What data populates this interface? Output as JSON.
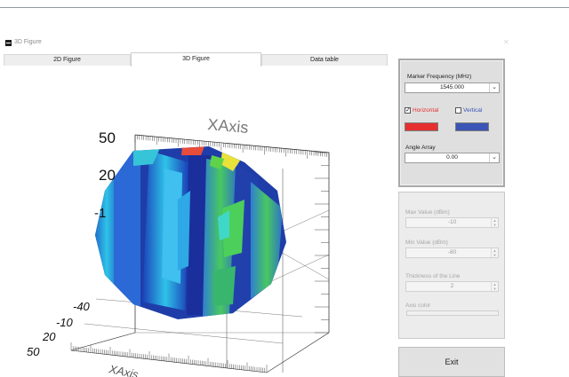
{
  "window": {
    "title": "3D Figure"
  },
  "tabs": [
    {
      "label": "2D Figure",
      "active": false
    },
    {
      "label": "3D Figure",
      "active": true
    },
    {
      "label": "Data table",
      "active": false
    }
  ],
  "plot": {
    "top_axis_label": "XAxis",
    "bottom_axis_label": "XAxis",
    "vertical_ticks": [
      "50",
      "20",
      "-1"
    ],
    "depth_ticks": [
      "-40",
      "-10",
      "20",
      "50"
    ]
  },
  "controls": {
    "marker_frequency": {
      "label": "Marker Frequency (MHz)",
      "value": "1545.000"
    },
    "horizontal": {
      "label": "Horizontal",
      "checked": true,
      "color": "#e6302f"
    },
    "vertical": {
      "label": "Vertical",
      "checked": false,
      "color": "#3a55b5"
    },
    "angle_array": {
      "label": "Angle Array",
      "value": "0.00"
    },
    "max_value": {
      "label": "Max Value (dBm)",
      "value": "-10"
    },
    "min_value": {
      "label": "Min Value (dBm)",
      "value": "-80"
    },
    "line_thickness": {
      "label": "Thickness of the Line",
      "value": "2"
    },
    "axis_color": {
      "label": "Axis color"
    },
    "exit_label": "Exit"
  },
  "colors": {
    "accent_red": "#e6302f",
    "accent_blue": "#3a55b5"
  }
}
